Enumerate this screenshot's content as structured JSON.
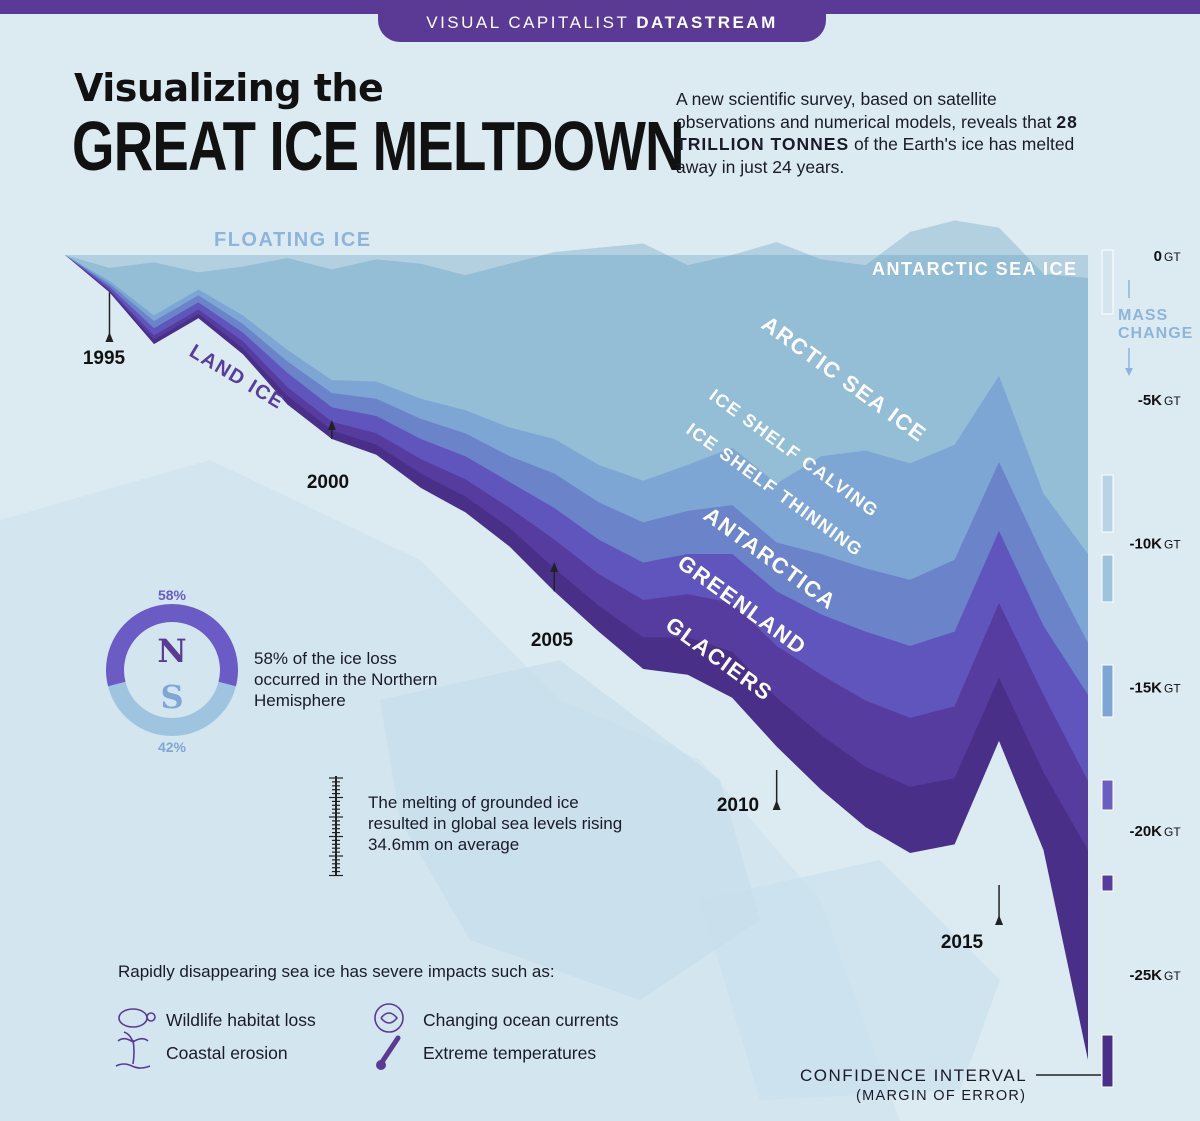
{
  "header": {
    "brand_light": "VISUAL CAPITALIST",
    "brand_bold": "DATASTREAM",
    "title_line1": "Visualizing the",
    "title_line2": "GREAT ICE MELTDOWN",
    "intro_pre": "A new scientific survey, based on satellite observations and numerical models, reveals that",
    "intro_bold": "28 TRILLION TONNES",
    "intro_post": "of the Earth's ice has melted away in just 24 years."
  },
  "chart_data": {
    "type": "area",
    "title": "",
    "xlabel": "",
    "ylabel": "MASS CHANGE",
    "x": [
      1994,
      1995,
      1996,
      1997,
      1998,
      1999,
      2000,
      2001,
      2002,
      2003,
      2004,
      2005,
      2006,
      2007,
      2008,
      2009,
      2010,
      2011,
      2012,
      2013,
      2014,
      2015,
      2016,
      2017
    ],
    "x_tick_labels": [
      "1995",
      "2000",
      "2005",
      "2010",
      "2015"
    ],
    "x_tick_values": [
      1995,
      2000,
      2005,
      2010,
      2015
    ],
    "ylim": [
      -28000,
      3000
    ],
    "y_unit": "GT",
    "y_ticks": [
      {
        "value": 0,
        "label": "0",
        "unit": "GT"
      },
      {
        "value": -5000,
        "label": "-5K",
        "unit": "GT"
      },
      {
        "value": -10000,
        "label": "-10K",
        "unit": "GT"
      },
      {
        "value": -15000,
        "label": "-15K",
        "unit": "GT"
      },
      {
        "value": -20000,
        "label": "-20K",
        "unit": "GT"
      },
      {
        "value": -25000,
        "label": "-25K",
        "unit": "GT"
      }
    ],
    "group_labels": [
      "FLOATING ICE",
      "LAND ICE"
    ],
    "series": [
      {
        "name": "ANTARCTIC SEA ICE",
        "color": "#b3d0e0",
        "values": [
          0,
          -450,
          -250,
          -600,
          -400,
          -100,
          -500,
          -150,
          -300,
          -700,
          -300,
          100,
          250,
          400,
          -350,
          0,
          450,
          -150,
          -350,
          800,
          1200,
          950,
          -650,
          -800
        ]
      },
      {
        "name": "ARCTIC SEA ICE",
        "color": "#94bdd6",
        "values": [
          0,
          -900,
          -2100,
          -1200,
          -2100,
          -3300,
          -4350,
          -4400,
          -5000,
          -5400,
          -6000,
          -6400,
          -7300,
          -7850,
          -7300,
          -6700,
          -7950,
          -7000,
          -6800,
          -7250,
          -6600,
          -4200,
          -8300,
          -10400
        ]
      },
      {
        "name": "ICE SHELF CALVING",
        "color": "#7ea6d4",
        "values": [
          0,
          -1000,
          -2300,
          -1400,
          -2400,
          -3700,
          -4800,
          -5000,
          -5700,
          -6200,
          -7000,
          -7600,
          -8600,
          -9300,
          -8900,
          -8700,
          -10000,
          -10400,
          -10900,
          -11300,
          -10600,
          -7200,
          -10500,
          -13500
        ]
      },
      {
        "name": "ICE SHELF THINNING",
        "color": "#6a83c9",
        "values": [
          0,
          -1100,
          -2550,
          -1650,
          -2700,
          -4100,
          -5300,
          -5600,
          -6400,
          -7000,
          -7900,
          -8800,
          -9900,
          -10700,
          -10400,
          -10400,
          -11700,
          -12500,
          -13100,
          -13600,
          -13100,
          -9600,
          -12900,
          -15300
        ]
      },
      {
        "name": "ANTARCTICA",
        "color": "#6054bd",
        "values": [
          0,
          -1200,
          -2800,
          -1900,
          -3000,
          -4600,
          -5800,
          -6200,
          -7100,
          -7800,
          -8800,
          -9900,
          -11100,
          -12000,
          -11800,
          -12100,
          -13600,
          -14600,
          -15500,
          -16100,
          -15700,
          -12100,
          -15300,
          -18300
        ]
      },
      {
        "name": "GREENLAND",
        "color": "#553c9e",
        "values": [
          0,
          -1250,
          -2950,
          -2050,
          -3250,
          -4900,
          -6100,
          -6600,
          -7600,
          -8400,
          -9500,
          -10900,
          -12200,
          -13300,
          -13300,
          -13800,
          -15400,
          -16700,
          -17800,
          -18500,
          -18200,
          -14700,
          -18000,
          -20700
        ]
      },
      {
        "name": "GLACIERS",
        "color": "#4a2f88",
        "values": [
          0,
          -1300,
          -3100,
          -2200,
          -3450,
          -5200,
          -6400,
          -6950,
          -8100,
          -8950,
          -10150,
          -11700,
          -13100,
          -14400,
          -14600,
          -15400,
          -17100,
          -18600,
          -19900,
          -20800,
          -20500,
          -16900,
          -20700,
          -28000
        ]
      }
    ],
    "confidence_intervals": [
      {
        "x": 2017,
        "low": -29000,
        "high": -27000
      }
    ]
  },
  "compass": {
    "north_pct": "58%",
    "south_pct": "42%",
    "north_letter": "N",
    "south_letter": "S",
    "north_share": 0.58,
    "text": "58% of the ice loss occurred in the Northern Hemisphere"
  },
  "sea_level": {
    "text": "The melting of grounded ice resulted in global sea levels rising 34.6mm on average"
  },
  "impacts": {
    "title": "Rapidly disappearing sea ice has severe impacts such as:",
    "items": [
      {
        "label": "Wildlife habitat loss",
        "icon": "turtle-icon"
      },
      {
        "label": "Coastal erosion",
        "icon": "palm-tree-icon"
      },
      {
        "label": "Changing ocean currents",
        "icon": "current-swirl-icon"
      },
      {
        "label": "Extreme temperatures",
        "icon": "thermometer-icon"
      }
    ]
  },
  "legend_note": {
    "line1": "CONFIDENCE INTERVAL",
    "line2": "(MARGIN OF ERROR)"
  },
  "colors": {
    "brand": "#5b3a96",
    "background": "#dcebf2"
  }
}
